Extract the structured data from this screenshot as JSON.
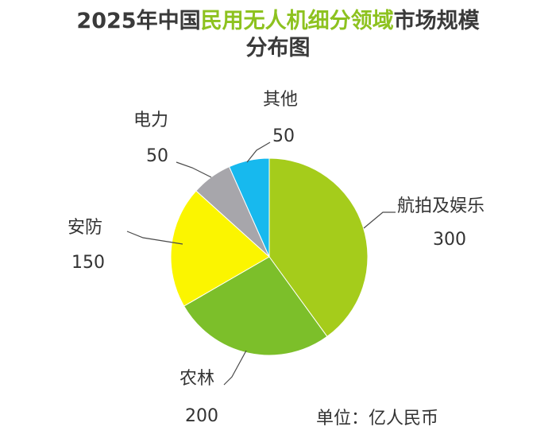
{
  "title": {
    "part1": "2025年中国",
    "highlight": "民用无人机细分领域",
    "part2": "市场规模",
    "line2": "分布图"
  },
  "unit_label": "单位：亿人民币",
  "colors": {
    "title_text": "#3a3a3a",
    "title_highlight": "#8dc21f"
  },
  "chart_data": {
    "type": "pie",
    "title": "2025年中国民用无人机细分领域市场规模分布图",
    "unit": "亿人民币",
    "start": "12 o'clock",
    "direction": "clockwise",
    "slices": [
      {
        "label": "航拍及娱乐",
        "value": 300,
        "color": "#a5cc1b"
      },
      {
        "label": "农林",
        "value": 200,
        "color": "#7cbf2a"
      },
      {
        "label": "安防",
        "value": 150,
        "color": "#fbf500"
      },
      {
        "label": "电力",
        "value": 50,
        "color": "#a7a6ab"
      },
      {
        "label": "其他",
        "value": 50,
        "color": "#17b9ee"
      }
    ]
  }
}
